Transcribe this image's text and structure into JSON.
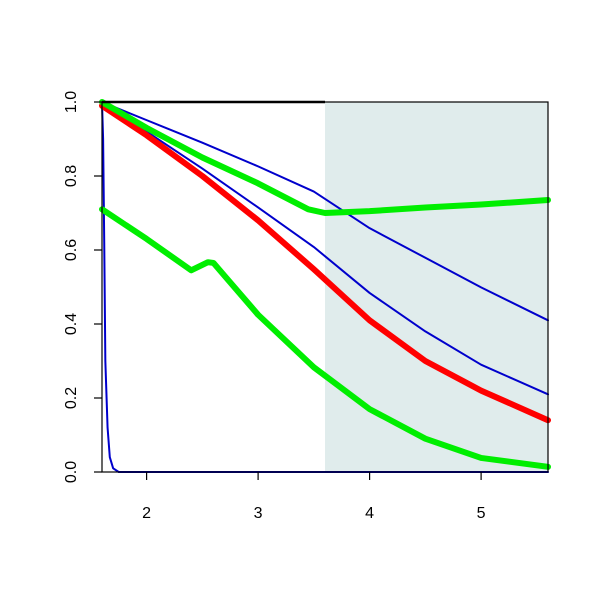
{
  "chart_data": {
    "type": "line",
    "title": "",
    "xlabel": "",
    "ylabel": "",
    "xlim": [
      1.6,
      5.6
    ],
    "ylim": [
      0,
      1
    ],
    "x_ticks": [
      {
        "value": 2,
        "label": "2"
      },
      {
        "value": 3,
        "label": "3"
      },
      {
        "value": 4,
        "label": "4"
      },
      {
        "value": 5,
        "label": "5"
      }
    ],
    "y_ticks": [
      {
        "value": 0,
        "label": "0.0"
      },
      {
        "value": 0.2,
        "label": "0.2"
      },
      {
        "value": 0.4,
        "label": "0.4"
      },
      {
        "value": 0.6,
        "label": "0.6"
      },
      {
        "value": 0.8,
        "label": "0.8"
      },
      {
        "value": 1.0,
        "label": "1.0"
      }
    ],
    "grid": false,
    "legend": "none",
    "shaded_region": {
      "x_from": 3.6,
      "x_to": 5.6,
      "color": "#e0ecec"
    },
    "reference_line": {
      "y": 1.0,
      "x_from": 1.6,
      "x_to": 3.6,
      "color": "#000000"
    },
    "series": [
      {
        "color": "#0000cc",
        "style": "thin",
        "points": [
          [
            1.6,
            1.0
          ],
          [
            2.0,
            0.951
          ],
          [
            2.5,
            0.89
          ],
          [
            3.0,
            0.826
          ],
          [
            3.5,
            0.758
          ],
          [
            4.0,
            0.659
          ],
          [
            4.5,
            0.579
          ],
          [
            5.0,
            0.499
          ],
          [
            5.6,
            0.41
          ]
        ]
      },
      {
        "color": "#0000cc",
        "style": "thin",
        "points": [
          [
            1.6,
            1.0
          ],
          [
            2.0,
            0.92
          ],
          [
            2.5,
            0.82
          ],
          [
            3.0,
            0.715
          ],
          [
            3.5,
            0.608
          ],
          [
            4.0,
            0.484
          ],
          [
            4.5,
            0.38
          ],
          [
            5.0,
            0.29
          ],
          [
            5.6,
            0.21
          ]
        ]
      },
      {
        "color": "#0000cc",
        "style": "thin",
        "points": [
          [
            1.6,
            1.0
          ],
          [
            1.61,
            0.9
          ],
          [
            1.62,
            0.62
          ],
          [
            1.63,
            0.3
          ],
          [
            1.65,
            0.12
          ],
          [
            1.67,
            0.04
          ],
          [
            1.7,
            0.01
          ],
          [
            1.75,
            0.0
          ],
          [
            5.6,
            0.0
          ]
        ]
      },
      {
        "color": "#ff0000",
        "style": "thick",
        "points": [
          [
            1.6,
            0.99
          ],
          [
            2.0,
            0.91
          ],
          [
            2.5,
            0.8
          ],
          [
            3.0,
            0.68
          ],
          [
            3.5,
            0.548
          ],
          [
            4.0,
            0.41
          ],
          [
            4.5,
            0.3
          ],
          [
            5.0,
            0.22
          ],
          [
            5.6,
            0.14
          ]
        ]
      },
      {
        "color": "#00ee00",
        "style": "thick",
        "points": [
          [
            1.6,
            1.0
          ],
          [
            2.0,
            0.93
          ],
          [
            2.5,
            0.85
          ],
          [
            3.0,
            0.78
          ],
          [
            3.45,
            0.71
          ],
          [
            3.6,
            0.7
          ],
          [
            4.0,
            0.705
          ],
          [
            4.5,
            0.715
          ],
          [
            5.0,
            0.723
          ],
          [
            5.6,
            0.735
          ]
        ]
      },
      {
        "color": "#00ee00",
        "style": "thick",
        "points": [
          [
            1.6,
            0.71
          ],
          [
            2.0,
            0.63
          ],
          [
            2.4,
            0.545
          ],
          [
            2.55,
            0.567
          ],
          [
            2.6,
            0.565
          ],
          [
            2.7,
            0.53
          ],
          [
            3.0,
            0.425
          ],
          [
            3.5,
            0.283
          ],
          [
            4.0,
            0.17
          ],
          [
            4.5,
            0.09
          ],
          [
            5.0,
            0.038
          ],
          [
            5.6,
            0.014
          ]
        ]
      }
    ]
  }
}
